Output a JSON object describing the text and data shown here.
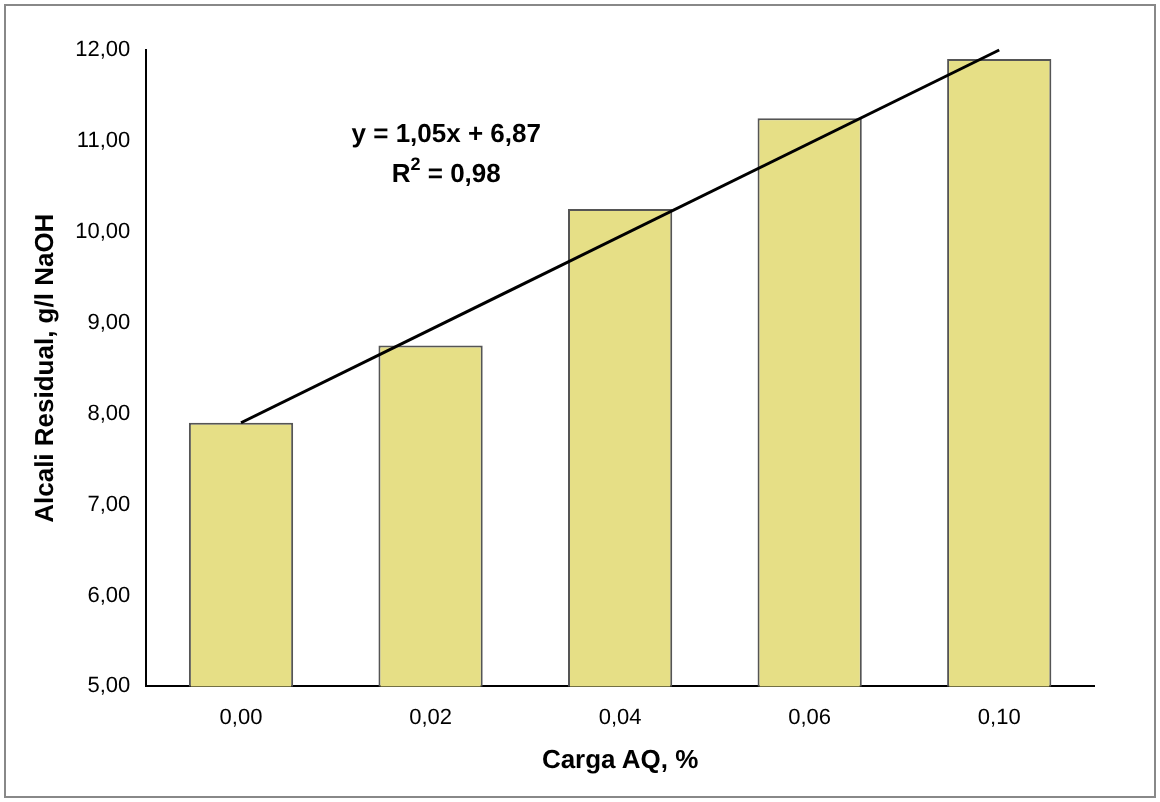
{
  "chart_data": {
    "type": "bar",
    "xlabel": "Carga AQ, %",
    "ylabel": "Alcali Residual, g/l NaOH",
    "categories": [
      "0,00",
      "0,02",
      "0,04",
      "0,06",
      "0,10"
    ],
    "series": [
      {
        "color": "#e6df86",
        "values": [
          7.9,
          8.75,
          10.25,
          11.25,
          11.9
        ]
      },
      {
        "type": "line",
        "color": "#000000",
        "x": [
          "0,00",
          "0,10"
        ],
        "values": [
          7.9,
          12.0
        ]
      }
    ],
    "ylim": [
      5,
      12
    ],
    "yticks": [
      {
        "value": 5,
        "label": "5,00"
      },
      {
        "value": 6,
        "label": "6,00"
      },
      {
        "value": 7,
        "label": "7,00"
      },
      {
        "value": 8,
        "label": "8,00"
      },
      {
        "value": 9,
        "label": "9,00"
      },
      {
        "value": 10,
        "label": "10,00"
      },
      {
        "value": 11,
        "label": "11,00"
      },
      {
        "value": 12,
        "label": "12,00"
      }
    ],
    "annotations": [
      "y = 1,05x + 6,87",
      "R$^{2}$ = 0,98"
    ],
    "grid": false,
    "legend": false,
    "marker": "none",
    "line_style": "solid"
  }
}
